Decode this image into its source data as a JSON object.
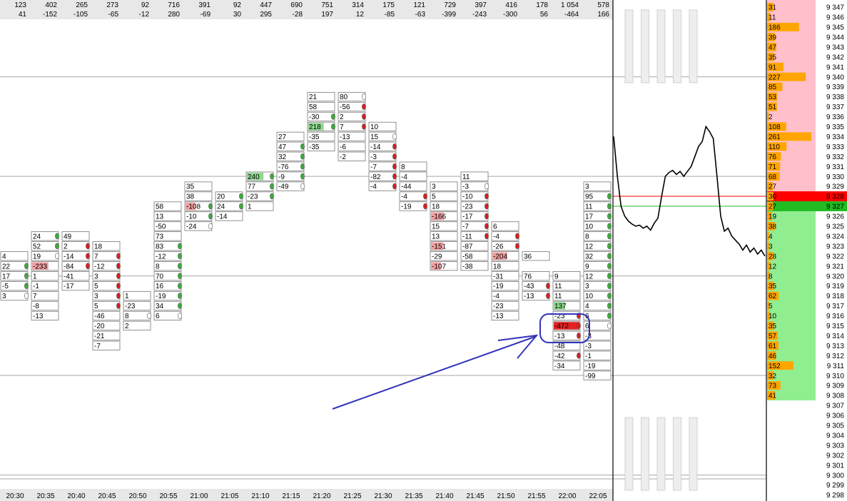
{
  "chart_data": {
    "type": "footprint",
    "price_axis": {
      "min": 9298,
      "max": 9347,
      "tick_step": 1
    },
    "current_price_levels": {
      "ask": 9328,
      "bid": 9327
    },
    "horizontal_lines": [
      9340,
      9330,
      9320,
      9310,
      9300
    ],
    "columns": [
      {
        "time": "20:30",
        "volume": "123",
        "delta": "41",
        "cells": [
          [
            9322,
            "4",
            ""
          ],
          [
            9321,
            "22",
            "g"
          ],
          [
            9320,
            "17",
            "g"
          ],
          [
            9319,
            "-5",
            "g"
          ],
          [
            9318,
            "3",
            "w"
          ]
        ]
      },
      {
        "time": "20:35",
        "volume": "402",
        "delta": "-152",
        "cells": [
          [
            9324,
            "24",
            "g"
          ],
          [
            9323,
            "52",
            "g"
          ],
          [
            9322,
            "19",
            "w"
          ],
          [
            9321,
            "-233",
            ""
          ],
          [
            9320,
            "1",
            ""
          ],
          [
            9319,
            "-1",
            ""
          ],
          [
            9318,
            "7",
            ""
          ],
          [
            9317,
            "-8",
            ""
          ],
          [
            9316,
            "-13",
            ""
          ]
        ]
      },
      {
        "time": "20:40",
        "volume": "265",
        "delta": "-105",
        "cells": [
          [
            9324,
            "49",
            ""
          ],
          [
            9323,
            "2",
            "r"
          ],
          [
            9322,
            "-14",
            "r"
          ],
          [
            9321,
            "-84",
            "r"
          ],
          [
            9320,
            "-41",
            ""
          ],
          [
            9319,
            "-17",
            ""
          ]
        ]
      },
      {
        "time": "20:45",
        "volume": "273",
        "delta": "-65",
        "cells": [
          [
            9323,
            "18",
            ""
          ],
          [
            9322,
            "7",
            "r"
          ],
          [
            9321,
            "-12",
            "r"
          ],
          [
            9320,
            "3",
            "r"
          ],
          [
            9319,
            "5",
            "r"
          ],
          [
            9318,
            "3",
            "r"
          ],
          [
            9317,
            "5",
            "r"
          ],
          [
            9316,
            "-46",
            ""
          ],
          [
            9315,
            "-20",
            ""
          ],
          [
            9314,
            "-21",
            ""
          ],
          [
            9313,
            "-7",
            ""
          ]
        ]
      },
      {
        "time": "20:50",
        "volume": "92",
        "delta": "-12",
        "cells": [
          [
            9318,
            "1",
            ""
          ],
          [
            9317,
            "-23",
            ""
          ],
          [
            9316,
            "8",
            "w"
          ],
          [
            9315,
            "2",
            ""
          ]
        ]
      },
      {
        "time": "20:55",
        "volume": "716",
        "delta": "280",
        "cells": [
          [
            9327,
            "58",
            ""
          ],
          [
            9326,
            "13",
            ""
          ],
          [
            9325,
            "-50",
            ""
          ],
          [
            9324,
            "73",
            ""
          ],
          [
            9323,
            "83",
            "g"
          ],
          [
            9322,
            "-12",
            "g"
          ],
          [
            9321,
            "8",
            "g"
          ],
          [
            9320,
            "70",
            "g"
          ],
          [
            9319,
            "16",
            "g"
          ],
          [
            9318,
            "-19",
            "g"
          ],
          [
            9317,
            "34",
            "g"
          ],
          [
            9316,
            "6",
            "w"
          ]
        ]
      },
      {
        "time": "21:00",
        "volume": "391",
        "delta": "-69",
        "cells": [
          [
            9329,
            "35",
            ""
          ],
          [
            9328,
            "38",
            ""
          ],
          [
            9327,
            "-108",
            "g"
          ],
          [
            9326,
            "-10",
            "g"
          ],
          [
            9325,
            "-24",
            "w"
          ]
        ]
      },
      {
        "time": "21:05",
        "volume": "92",
        "delta": "30",
        "cells": [
          [
            9328,
            "20",
            "g"
          ],
          [
            9327,
            "24",
            "g"
          ],
          [
            9326,
            "-14",
            ""
          ]
        ]
      },
      {
        "time": "21:10",
        "volume": "447",
        "delta": "295",
        "cells": [
          [
            9330,
            "240",
            "g"
          ],
          [
            9329,
            "77",
            "g"
          ],
          [
            9328,
            "-23",
            "g"
          ],
          [
            9327,
            "1",
            ""
          ]
        ]
      },
      {
        "time": "21:15",
        "volume": "690",
        "delta": "-28",
        "cells": [
          [
            9334,
            "27",
            ""
          ],
          [
            9333,
            "47",
            "g"
          ],
          [
            9332,
            "32",
            "g"
          ],
          [
            9331,
            "-76",
            "g"
          ],
          [
            9330,
            "-9",
            "g"
          ],
          [
            9329,
            "-49",
            "w"
          ]
        ]
      },
      {
        "time": "21:20",
        "volume": "751",
        "delta": "197",
        "cells": [
          [
            9338,
            "21",
            ""
          ],
          [
            9337,
            "58",
            ""
          ],
          [
            9336,
            "-30",
            "g"
          ],
          [
            9335,
            "218",
            "g"
          ],
          [
            9334,
            "-35",
            ""
          ],
          [
            9333,
            "-35",
            ""
          ]
        ]
      },
      {
        "time": "21:25",
        "volume": "314",
        "delta": "12",
        "cells": [
          [
            9338,
            "80",
            "w"
          ],
          [
            9337,
            "-56",
            "r"
          ],
          [
            9336,
            "2",
            "r"
          ],
          [
            9335,
            "7",
            "r"
          ],
          [
            9334,
            "-13",
            ""
          ],
          [
            9333,
            "-6",
            ""
          ],
          [
            9332,
            "-2",
            ""
          ]
        ]
      },
      {
        "time": "21:30",
        "volume": "175",
        "delta": "-85",
        "cells": [
          [
            9335,
            "10",
            ""
          ],
          [
            9334,
            "15",
            "w"
          ],
          [
            9333,
            "-14",
            "r"
          ],
          [
            9332,
            "-3",
            "r"
          ],
          [
            9331,
            "-7",
            "r"
          ],
          [
            9330,
            "-82",
            "r"
          ],
          [
            9329,
            "-4",
            "r"
          ]
        ]
      },
      {
        "time": "21:35",
        "volume": "121",
        "delta": "-63",
        "cells": [
          [
            9331,
            "8",
            ""
          ],
          [
            9330,
            "-4",
            ""
          ],
          [
            9329,
            "-44",
            ""
          ],
          [
            9328,
            "-4",
            "r"
          ],
          [
            9327,
            "-19",
            "r"
          ]
        ]
      },
      {
        "time": "21:40",
        "volume": "729",
        "delta": "-399",
        "cells": [
          [
            9329,
            "3",
            ""
          ],
          [
            9328,
            "5",
            ""
          ],
          [
            9327,
            "18",
            ""
          ],
          [
            9326,
            "-166",
            ""
          ],
          [
            9325,
            "15",
            ""
          ],
          [
            9324,
            "13",
            ""
          ],
          [
            9323,
            "-151",
            ""
          ],
          [
            9322,
            "-29",
            ""
          ],
          [
            9321,
            "-107",
            ""
          ]
        ]
      },
      {
        "time": "21:45",
        "volume": "397",
        "delta": "-243",
        "cells": [
          [
            9330,
            "11",
            ""
          ],
          [
            9329,
            "-3",
            "w"
          ],
          [
            9328,
            "-10",
            "r"
          ],
          [
            9327,
            "-23",
            "r"
          ],
          [
            9326,
            "-17",
            "r"
          ],
          [
            9325,
            "-7",
            "r"
          ],
          [
            9324,
            "-11",
            "r"
          ],
          [
            9323,
            "-87",
            ""
          ],
          [
            9322,
            "-58",
            ""
          ],
          [
            9321,
            "-38",
            ""
          ]
        ]
      },
      {
        "time": "21:50",
        "volume": "416",
        "delta": "-300",
        "cells": [
          [
            9325,
            "6",
            ""
          ],
          [
            9324,
            "-4",
            "r"
          ],
          [
            9323,
            "-26",
            "r"
          ],
          [
            9322,
            "-204",
            ""
          ],
          [
            9321,
            "18",
            ""
          ],
          [
            9320,
            "-31",
            ""
          ],
          [
            9319,
            "-19",
            ""
          ],
          [
            9318,
            "-4",
            ""
          ],
          [
            9317,
            "-23",
            ""
          ],
          [
            9316,
            "-13",
            ""
          ]
        ]
      },
      {
        "time": "21:55",
        "volume": "178",
        "delta": "56",
        "cells": [
          [
            9322,
            "36",
            ""
          ],
          [
            9320,
            "76",
            ""
          ],
          [
            9319,
            "-43",
            "r"
          ],
          [
            9318,
            "-13",
            "r"
          ]
        ]
      },
      {
        "time": "22:00",
        "volume": "1 054",
        "delta": "-464",
        "cells": [
          [
            9320,
            "9",
            ""
          ],
          [
            9319,
            "11",
            ""
          ],
          [
            9318,
            "11",
            ""
          ],
          [
            9317,
            "137",
            ""
          ],
          [
            9316,
            "-23",
            "r"
          ],
          [
            9315,
            "-472",
            "r"
          ],
          [
            9314,
            "-13",
            "r"
          ],
          [
            9313,
            "-48",
            ""
          ],
          [
            9312,
            "-42",
            "r"
          ],
          [
            9311,
            "-34",
            ""
          ]
        ]
      },
      {
        "time": "22:05",
        "volume": "578",
        "delta": "166",
        "cells": [
          [
            9329,
            "3",
            ""
          ],
          [
            9328,
            "95",
            "g"
          ],
          [
            9327,
            "11",
            "g"
          ],
          [
            9326,
            "17",
            "g"
          ],
          [
            9325,
            "10",
            "g"
          ],
          [
            9324,
            "8",
            "g"
          ],
          [
            9323,
            "12",
            "g"
          ],
          [
            9322,
            "32",
            "g"
          ],
          [
            9321,
            "9",
            "g"
          ],
          [
            9320,
            "12",
            "g"
          ],
          [
            9319,
            "3",
            "g"
          ],
          [
            9318,
            "10",
            "g"
          ],
          [
            9317,
            "4",
            "g"
          ],
          [
            9316,
            "6",
            "g"
          ],
          [
            9315,
            "6",
            "w"
          ],
          [
            9314,
            "-3",
            ""
          ],
          [
            9313,
            "-3",
            ""
          ],
          [
            9312,
            "-1",
            ""
          ],
          [
            9311,
            "-19",
            ""
          ],
          [
            9310,
            "-99",
            ""
          ]
        ]
      }
    ],
    "volume_profile": [
      [
        9347,
        31
      ],
      [
        9346,
        11
      ],
      [
        9345,
        186
      ],
      [
        9344,
        39
      ],
      [
        9343,
        47
      ],
      [
        9342,
        35
      ],
      [
        9341,
        91
      ],
      [
        9340,
        227
      ],
      [
        9339,
        85
      ],
      [
        9338,
        53
      ],
      [
        9337,
        51
      ],
      [
        9336,
        2
      ],
      [
        9335,
        108
      ],
      [
        9334,
        261
      ],
      [
        9333,
        110
      ],
      [
        9332,
        76
      ],
      [
        9331,
        71
      ],
      [
        9330,
        68
      ],
      [
        9329,
        27
      ],
      [
        9328,
        30
      ],
      [
        9327,
        27
      ],
      [
        9326,
        19
      ],
      [
        9325,
        38
      ],
      [
        9324,
        4
      ],
      [
        9323,
        3
      ],
      [
        9322,
        28
      ],
      [
        9321,
        12
      ],
      [
        9320,
        8
      ],
      [
        9319,
        35
      ],
      [
        9318,
        62
      ],
      [
        9317,
        5
      ],
      [
        9316,
        10
      ],
      [
        9315,
        35
      ],
      [
        9314,
        57
      ],
      [
        9313,
        61
      ],
      [
        9312,
        46
      ],
      [
        9311,
        152
      ],
      [
        9310,
        32
      ],
      [
        9309,
        73
      ],
      [
        9308,
        41
      ]
    ],
    "price_tick_labels": [
      "9 347",
      "9 346",
      "9 345",
      "9 344",
      "9 343",
      "9 342",
      "9 341",
      "9 340",
      "9 339",
      "9 338",
      "9 337",
      "9 336",
      "9 335",
      "9 334",
      "9 333",
      "9 332",
      "9 331",
      "9 330",
      "9 329",
      "9 328",
      "9 327",
      "9 326",
      "9 325",
      "9 324",
      "9 323",
      "9 322",
      "9 321",
      "9 320",
      "9 319",
      "9 318",
      "9 317",
      "9 316",
      "9 315",
      "9 314",
      "9 313",
      "9 312",
      "9 311",
      "9 310",
      "9 309",
      "9 308",
      "9 307",
      "9 306",
      "9 305",
      "9 304",
      "9 303",
      "9 302",
      "9 301",
      "9 300",
      "9 299",
      "9 298"
    ],
    "line_series": [
      9334,
      9330,
      9327,
      9326,
      9325.5,
      9325.2,
      9325,
      9325.1,
      9324.8,
      9325,
      9324.6,
      9325.3,
      9325.8,
      9328,
      9330,
      9330.4,
      9330.6,
      9330.2,
      9330.5,
      9330,
      9330.5,
      9331,
      9332,
      9333,
      9333.5,
      9335,
      9334.5,
      9333.8,
      9330,
      9326,
      9324.5,
      9324.8,
      9324,
      9323.6,
      9323.2,
      9322.6,
      9323.1,
      9322.4,
      9322.8,
      9322.2,
      9322.6,
      9322
    ],
    "colors": {
      "red_zone": "#ffc0cb",
      "green_zone": "#90ee90",
      "ask": "#ff0000",
      "bid": "#22bb22",
      "profile_bar": "#ffa500",
      "annotation": "#3333bb"
    }
  }
}
